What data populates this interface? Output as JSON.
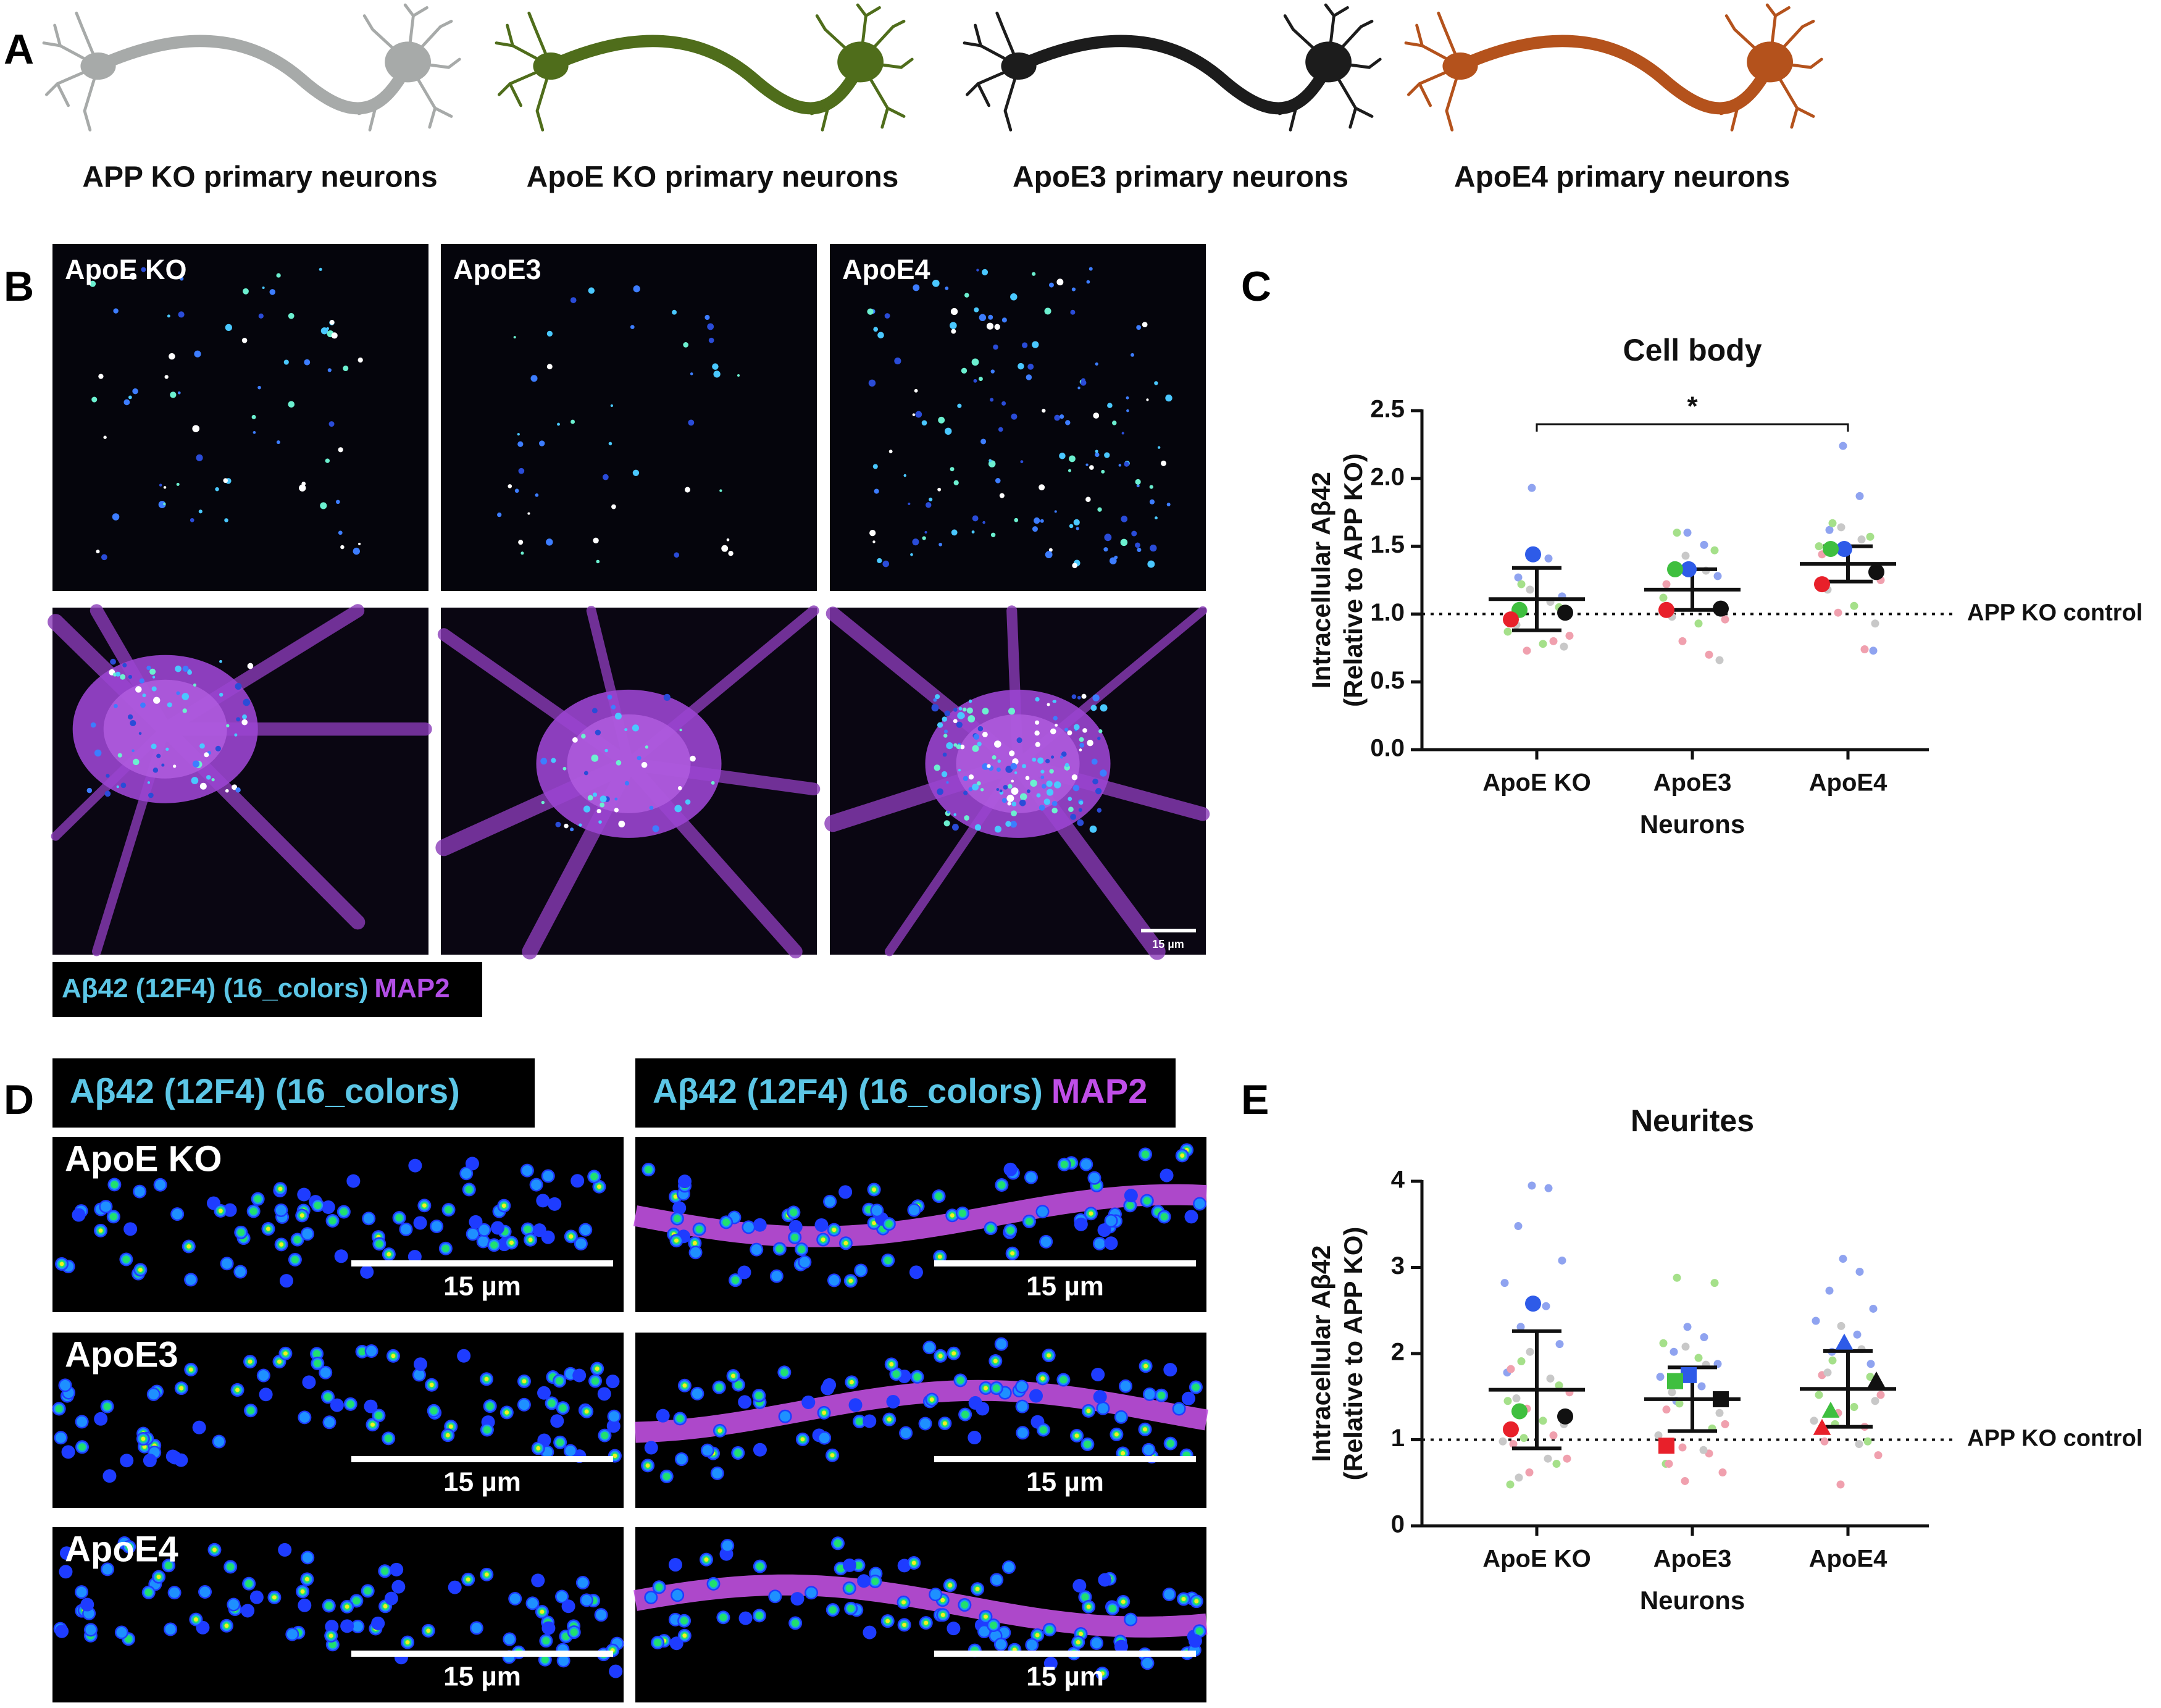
{
  "panel_labels": [
    "A",
    "B",
    "C",
    "D",
    "E"
  ],
  "panel_a": {
    "neurons": [
      {
        "caption": "APP KO primary neurons",
        "color": "#a7aaa9"
      },
      {
        "caption": "ApoE KO primary neurons",
        "color": "#4f6d1b"
      },
      {
        "caption": "ApoE3 primary neurons",
        "color": "#1c1c1c"
      },
      {
        "caption": "ApoE4 primary neurons",
        "color": "#b4521c"
      }
    ]
  },
  "panel_b": {
    "image_labels": [
      "ApoE KO",
      "ApoE3",
      "ApoE4"
    ],
    "scale_bar": "15 µm",
    "legend": [
      {
        "text": "Aβ42 (12F4) (16_colors)",
        "color": "#5cc6e6"
      },
      {
        "text": "MAP2",
        "color": "#b34ee6"
      }
    ]
  },
  "panel_d": {
    "headers": [
      [
        {
          "text": "Aβ42 (12F4) (16_colors)",
          "color": "#5cc6e6"
        }
      ],
      [
        {
          "text": "Aβ42 (12F4) (16_colors)",
          "color": "#5cc6e6"
        },
        {
          "text": "MAP2",
          "color": "#c04ee8"
        }
      ]
    ],
    "row_labels": [
      "ApoE KO",
      "ApoE3",
      "ApoE4"
    ],
    "scale_bar": "15 µm"
  },
  "chart_data": [
    {
      "type": "dot",
      "title": "Cell body",
      "ylabel": [
        "Intracellular Aβ42",
        "(Relative to APP KO)"
      ],
      "xlabel": "Neurons",
      "categories": [
        "ApoE KO",
        "ApoE3",
        "ApoE4"
      ],
      "ylim": [
        0,
        2.5
      ],
      "yticks": [
        {
          "value": 0,
          "label": "0.0"
        },
        0.5,
        {
          "value": 1,
          "label": "1.0"
        },
        1.5,
        {
          "value": 2,
          "label": "2.0"
        },
        2.5
      ],
      "means": [
        1.11,
        1.18,
        1.37
      ],
      "errors": [
        0.23,
        0.15,
        0.13
      ],
      "markers": [
        "circle",
        "circle",
        "circle"
      ],
      "series": [
        {
          "color": "#2e5be8",
          "point_color": "#8fa3f0",
          "values": [
            1.44,
            1.33,
            1.48
          ],
          "points": [
            [
              1.93,
              1.41,
              1.27,
              1.13
            ],
            [
              1.6,
              1.51,
              1.36,
              1.28
            ],
            [
              2.24,
              1.87,
              1.62,
              0.73
            ]
          ]
        },
        {
          "color": "#3fbf3f",
          "point_color": "#a5e08a",
          "values": [
            1.03,
            1.33,
            1.48
          ],
          "points": [
            [
              1.22,
              1.05,
              0.87,
              0.78
            ],
            [
              1.6,
              1.47,
              1.12,
              0.93
            ],
            [
              1.67,
              1.57,
              1.5,
              1.06
            ]
          ]
        },
        {
          "color": "#e8202a",
          "point_color": "#f0a0ae",
          "values": [
            0.96,
            1.03,
            1.22
          ],
          "points": [
            [
              0.95,
              0.84,
              0.73,
              0.8
            ],
            [
              1.22,
              0.96,
              0.8,
              0.7
            ],
            [
              1.44,
              1.25,
              1.01,
              0.74
            ]
          ]
        },
        {
          "color": "#111111",
          "point_color": "#c8c8c8",
          "values": [
            1.01,
            1.04,
            1.31
          ],
          "points": [
            [
              1.18,
              1.09,
              0.92,
              0.76
            ],
            [
              1.43,
              1.32,
              0.98,
              0.66
            ],
            [
              1.64,
              1.55,
              1.18,
              0.93
            ]
          ]
        }
      ],
      "reference": {
        "value": 1,
        "label": "APP KO control"
      },
      "annotations": [
        {
          "text": "*",
          "from": 0,
          "to": 2,
          "y": 2.4
        }
      ]
    },
    {
      "type": "dot",
      "title": "Neurites",
      "ylabel": [
        "Intracellular Aβ42",
        "(Relative to APP KO)"
      ],
      "xlabel": "Neurons",
      "categories": [
        "ApoE KO",
        "ApoE3",
        "ApoE4"
      ],
      "ylim": [
        0,
        4
      ],
      "yticks": [
        0,
        1,
        2,
        3,
        4
      ],
      "means": [
        1.58,
        1.47,
        1.59
      ],
      "errors": [
        0.68,
        0.37,
        0.44
      ],
      "markers": [
        "circle",
        "square",
        "triangle"
      ],
      "series": [
        {
          "color": "#2e5be8",
          "point_color": "#8fa3f0",
          "values": [
            2.58,
            1.75,
            2.12
          ],
          "points": [
            [
              3.95,
              3.92,
              3.48,
              3.08,
              2.82,
              2.55,
              2.31,
              2.11,
              1.78
            ],
            [
              2.31,
              2.19,
              2.02,
              1.88,
              1.73,
              1.62,
              1.45
            ],
            [
              3.1,
              2.95,
              2.73,
              2.52,
              2.38,
              2.22,
              2.02,
              1.88
            ]
          ]
        },
        {
          "color": "#3fbf3f",
          "point_color": "#a5e08a",
          "values": [
            1.33,
            1.68,
            1.33
          ],
          "points": [
            [
              1.91,
              1.63,
              1.45,
              1.22,
              1.02,
              0.72,
              0.48
            ],
            [
              2.88,
              2.82,
              2.12,
              1.95,
              1.42,
              1.13,
              0.72
            ],
            [
              1.92,
              1.73,
              1.52,
              1.38,
              1.18,
              0.98
            ]
          ]
        },
        {
          "color": "#e8202a",
          "point_color": "#f0a0ae",
          "values": [
            1.12,
            0.93,
            1.13
          ],
          "points": [
            [
              1.82,
              1.55,
              1.36,
              1.05,
              0.95,
              0.78,
              0.62
            ],
            [
              1.35,
              1.18,
              0.91,
              0.84,
              0.72,
              0.62,
              0.52
            ],
            [
              1.75,
              1.52,
              1.31,
              1.15,
              0.98,
              0.82,
              0.48
            ]
          ]
        },
        {
          "color": "#111111",
          "point_color": "#c8c8c8",
          "values": [
            1.27,
            1.47,
            1.68
          ],
          "points": [
            [
              2.02,
              1.71,
              1.48,
              1.18,
              0.98,
              0.78,
              0.56
            ],
            [
              2.08,
              1.87,
              1.55,
              1.31,
              1.05,
              0.88
            ],
            [
              2.32,
              2.05,
              1.78,
              1.45,
              1.22,
              0.95
            ]
          ]
        }
      ],
      "reference": {
        "value": 1,
        "label": "APP KO control"
      }
    }
  ]
}
